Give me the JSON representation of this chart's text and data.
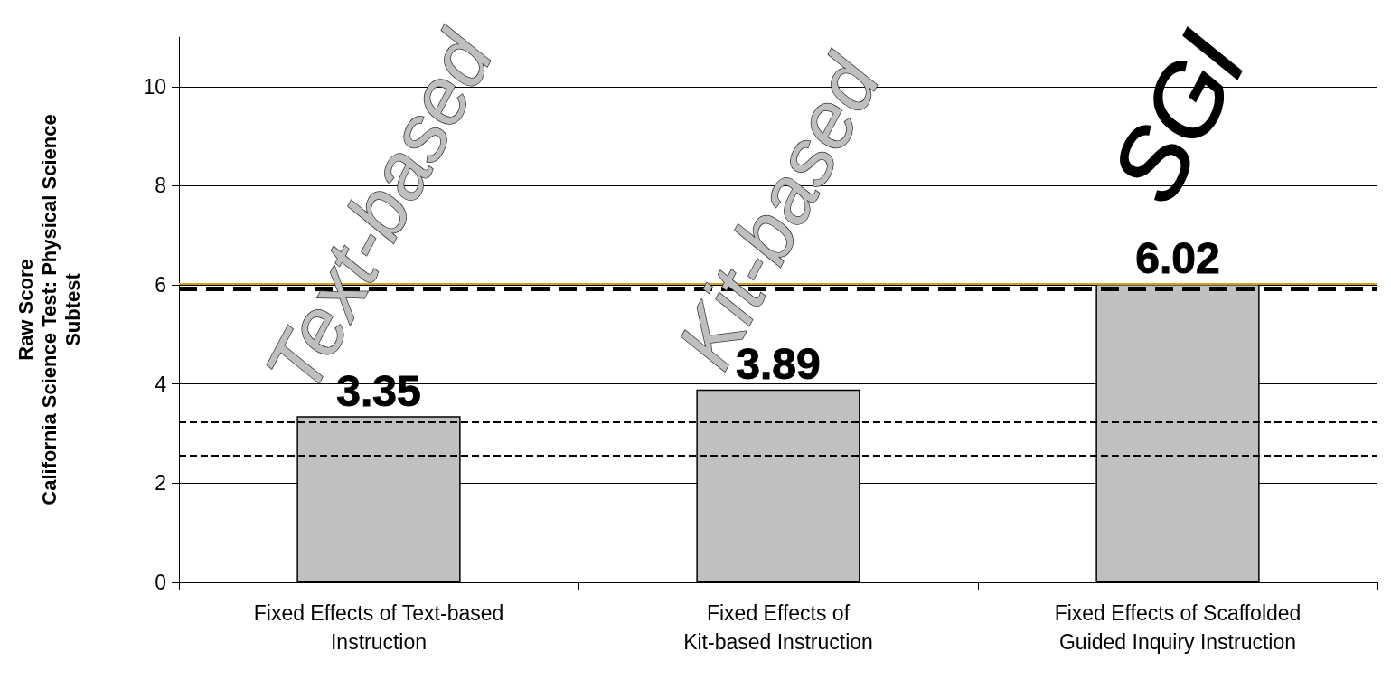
{
  "chart_data": {
    "type": "bar",
    "ylabel": "Raw Score\nCalifornia Science Test: Physical Science\nSubtest",
    "categories": [
      "Fixed Effects of Text-based\nInstruction",
      "Fixed Effects of\nKit-based Instruction",
      "Fixed Effects of Scaffolded\nGuided Inquiry Instruction"
    ],
    "values": [
      3.35,
      3.89,
      6.02
    ],
    "color": "#c0c0c0",
    "data_labels": true,
    "ylim": [
      0,
      11
    ],
    "yticks": [
      0,
      2,
      4,
      6,
      8,
      10
    ],
    "grid": "y",
    "ref_lines": [
      {
        "axis": "y",
        "value": 6.02,
        "color": "#d4a017",
        "line_style": "solid"
      },
      {
        "axis": "y",
        "value": 5.93,
        "color": "#000000",
        "line_style": "dashed"
      },
      {
        "axis": "y",
        "value": 3.23,
        "color": "#000000",
        "line_style": "dashed"
      },
      {
        "axis": "y",
        "value": 2.55,
        "color": "#000000",
        "line_style": "dashed"
      }
    ],
    "annotations": [
      "Text-based",
      "Kit-based",
      "SGI"
    ]
  }
}
